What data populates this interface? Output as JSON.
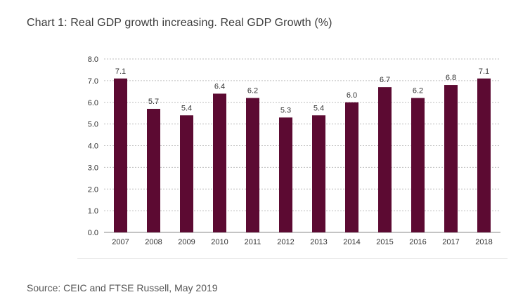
{
  "title": "Chart 1: Real GDP growth increasing. Real GDP Growth (%)",
  "source": "Source: CEIC and FTSE Russell, May 2019",
  "colors": {
    "bar": "#5c0a32",
    "grid": "#bdbdbd",
    "axis": "#8a8a8a",
    "text": "#333333"
  },
  "chart_data": {
    "type": "bar",
    "title": "Chart 1: Real GDP growth increasing. Real GDP Growth (%)",
    "xlabel": "",
    "ylabel": "",
    "categories": [
      "2007",
      "2008",
      "2009",
      "2010",
      "2011",
      "2012",
      "2013",
      "2014",
      "2015",
      "2016",
      "2017",
      "2018"
    ],
    "values": [
      7.1,
      5.7,
      5.4,
      6.4,
      6.2,
      5.3,
      5.4,
      6.0,
      6.7,
      6.2,
      6.8,
      7.1
    ],
    "data_labels": [
      "7.1",
      "5.7",
      "5.4",
      "6.4",
      "6.2",
      "5.3",
      "5.4",
      "6.0",
      "6.7",
      "6.2",
      "6.8",
      "7.1"
    ],
    "ylim": [
      0,
      8
    ],
    "yticks": [
      "0.0",
      "1.0",
      "2.0",
      "3.0",
      "4.0",
      "5.0",
      "6.0",
      "7.0",
      "8.0"
    ],
    "grid": true,
    "legend": "none"
  }
}
